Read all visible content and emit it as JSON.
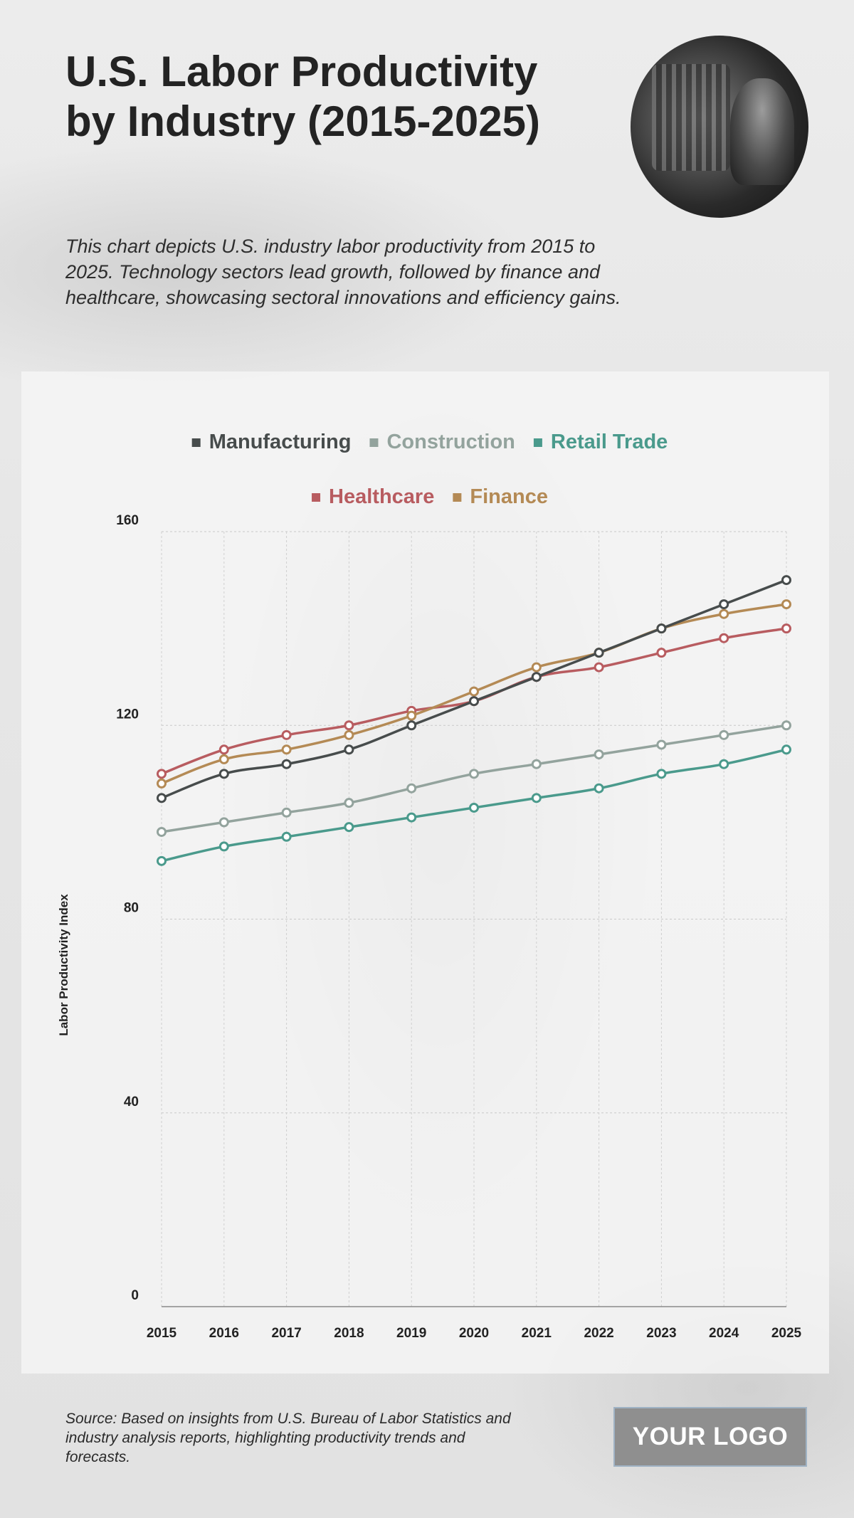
{
  "title": "U.S. Labor Productivity by Industry (2015-2025)",
  "subtitle": "This chart depicts U.S. industry labor productivity from 2015 to 2025. Technology sectors lead growth, followed by finance and healthcare, showcasing sectoral innovations and efficiency gains.",
  "source": "Source: Based on insights from U.S. Bureau of Labor Statistics and industry analysis reports, highlighting productivity trends and forecasts.",
  "logo_text": "YOUR LOGO",
  "chart_data": {
    "type": "line",
    "title": "",
    "xlabel": "",
    "ylabel": "Labor Productivity Index",
    "ylim": [
      0,
      160
    ],
    "yticks": [
      0,
      40,
      80,
      120,
      160
    ],
    "grid": true,
    "legend_position": "top-center",
    "x": [
      "2015",
      "2016",
      "2017",
      "2018",
      "2019",
      "2020",
      "2021",
      "2022",
      "2023",
      "2024",
      "2025"
    ],
    "series": [
      {
        "name": "Manufacturing",
        "color": "#474c4c",
        "values": [
          105,
          110,
          112,
          115,
          120,
          125,
          130,
          135,
          140,
          145,
          150
        ]
      },
      {
        "name": "Construction",
        "color": "#93a39d",
        "values": [
          98,
          100,
          102,
          104,
          107,
          110,
          112,
          114,
          116,
          118,
          120
        ]
      },
      {
        "name": "Retail Trade",
        "color": "#4a9a8c",
        "values": [
          92,
          95,
          97,
          99,
          101,
          103,
          105,
          107,
          110,
          112,
          115
        ]
      },
      {
        "name": "Healthcare",
        "color": "#b85c60",
        "values": [
          110,
          115,
          118,
          120,
          123,
          125,
          130,
          132,
          135,
          138,
          140
        ]
      },
      {
        "name": "Finance",
        "color": "#b48a55",
        "values": [
          108,
          113,
          115,
          118,
          122,
          127,
          132,
          135,
          140,
          143,
          145
        ]
      }
    ]
  }
}
